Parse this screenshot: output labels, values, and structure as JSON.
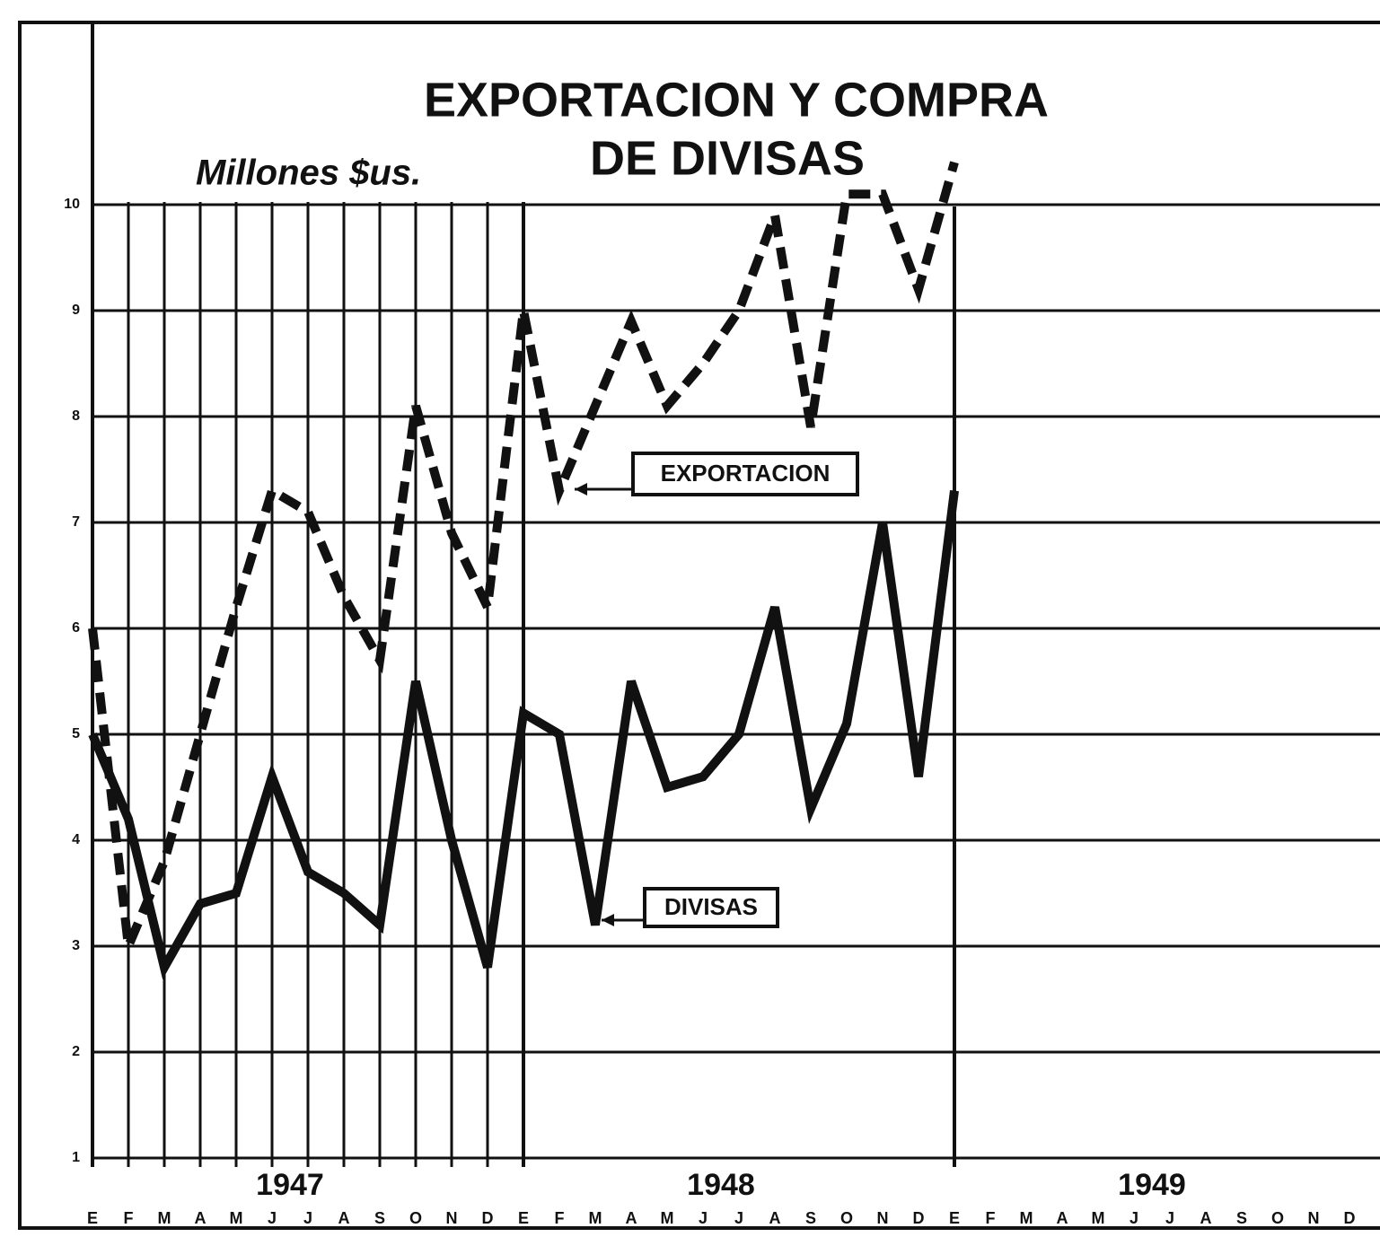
{
  "chart_data": {
    "type": "line",
    "title": "EXPORTACION Y COMPRA",
    "subtitle": "DE DIVISAS",
    "y_label": "Millones $us.",
    "years": [
      "1947",
      "1948",
      "1949"
    ],
    "categories": [
      "E",
      "F",
      "M",
      "A",
      "M",
      "J",
      "J",
      "A",
      "S",
      "O",
      "N",
      "D",
      "E",
      "F",
      "M",
      "A",
      "M",
      "J",
      "J",
      "A",
      "S",
      "O",
      "N",
      "D",
      "E",
      "F",
      "M",
      "A",
      "M",
      "J",
      "J",
      "A",
      "S",
      "O",
      "N",
      "D"
    ],
    "series": [
      {
        "name": "EXPORTACION",
        "color": "#111111",
        "dashed": true,
        "values": [
          6.0,
          3.0,
          3.8,
          5.0,
          6.2,
          7.3,
          7.1,
          6.3,
          5.7,
          8.1,
          6.9,
          6.2,
          9.0,
          7.3,
          8.1,
          8.9,
          8.1,
          8.5,
          9.0,
          9.9,
          7.9,
          10.1,
          10.1,
          9.2,
          10.4,
          null,
          null,
          null,
          null,
          null,
          null,
          null,
          null,
          null,
          null,
          null
        ]
      },
      {
        "name": "DIVISAS",
        "color": "#111111",
        "dashed": false,
        "values": [
          5.0,
          4.2,
          2.8,
          3.4,
          3.5,
          4.6,
          3.7,
          3.5,
          3.2,
          5.5,
          4.0,
          2.8,
          5.2,
          5.0,
          3.2,
          5.5,
          4.5,
          4.6,
          5.0,
          6.2,
          4.3,
          5.1,
          7.0,
          4.6,
          7.3,
          null,
          null,
          null,
          null,
          null,
          null,
          null,
          null,
          null,
          null,
          null
        ]
      }
    ],
    "ylim": [
      1,
      11.5
    ],
    "yticks": [
      1,
      2,
      3,
      4,
      5,
      6,
      7,
      8,
      9,
      10
    ],
    "grid": true
  }
}
